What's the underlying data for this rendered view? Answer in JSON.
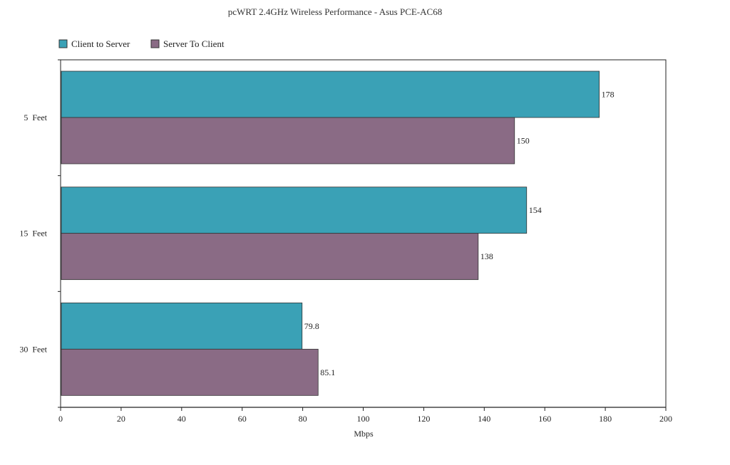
{
  "chart_data": {
    "type": "bar",
    "orientation": "horizontal",
    "title": "pcWRT 2.4GHz Wireless Performance - Asus PCE-AC68",
    "xlabel": "Mbps",
    "ylabel": "",
    "categories": [
      "5  Feet",
      "15  Feet",
      "30  Feet"
    ],
    "series": [
      {
        "name": "Client to Server",
        "values": [
          178,
          154,
          79.8
        ],
        "labels": [
          "178",
          "154",
          "79.8"
        ],
        "color": "#3aa1b6"
      },
      {
        "name": "Server To Client",
        "values": [
          150,
          138,
          85.1
        ],
        "labels": [
          "150",
          "138",
          "85.1"
        ],
        "color": "#8a6b85"
      }
    ],
    "xlim": [
      0,
      200
    ],
    "xticks": [
      0,
      20,
      40,
      60,
      80,
      100,
      120,
      140,
      160,
      180,
      200
    ],
    "grid": false,
    "legend_position": "top-left"
  }
}
